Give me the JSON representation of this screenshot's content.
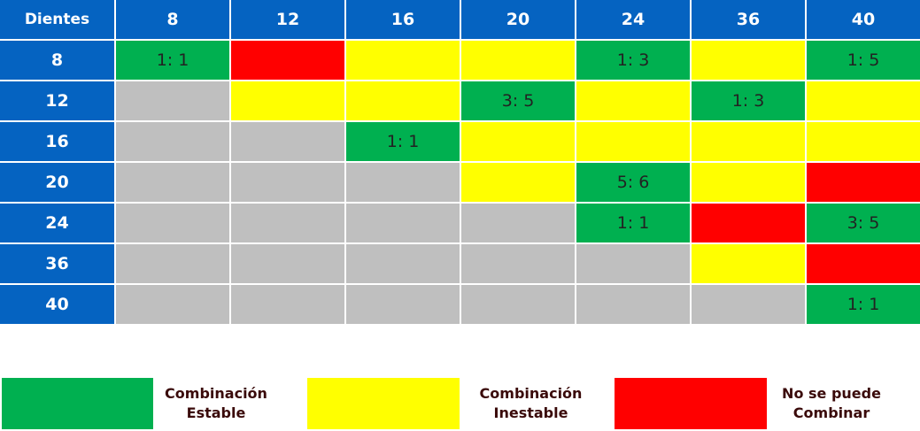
{
  "chart_data": {
    "type": "table",
    "corner_label": "Dientes",
    "columns": [
      "8",
      "12",
      "16",
      "20",
      "24",
      "36",
      "40"
    ],
    "rows": [
      "8",
      "12",
      "16",
      "20",
      "24",
      "36",
      "40"
    ],
    "cells": [
      [
        {
          "s": "stable",
          "t": "1: 1"
        },
        {
          "s": "impossible",
          "t": ""
        },
        {
          "s": "unstable",
          "t": ""
        },
        {
          "s": "unstable",
          "t": ""
        },
        {
          "s": "stable",
          "t": "1: 3"
        },
        {
          "s": "unstable",
          "t": ""
        },
        {
          "s": "stable",
          "t": "1: 5"
        }
      ],
      [
        {
          "s": "na",
          "t": ""
        },
        {
          "s": "unstable",
          "t": ""
        },
        {
          "s": "unstable",
          "t": ""
        },
        {
          "s": "stable",
          "t": "3: 5"
        },
        {
          "s": "unstable",
          "t": ""
        },
        {
          "s": "stable",
          "t": "1: 3"
        },
        {
          "s": "unstable",
          "t": ""
        }
      ],
      [
        {
          "s": "na",
          "t": ""
        },
        {
          "s": "na",
          "t": ""
        },
        {
          "s": "stable",
          "t": "1: 1"
        },
        {
          "s": "unstable",
          "t": ""
        },
        {
          "s": "unstable",
          "t": ""
        },
        {
          "s": "unstable",
          "t": ""
        },
        {
          "s": "unstable",
          "t": ""
        }
      ],
      [
        {
          "s": "na",
          "t": ""
        },
        {
          "s": "na",
          "t": ""
        },
        {
          "s": "na",
          "t": ""
        },
        {
          "s": "unstable",
          "t": ""
        },
        {
          "s": "stable",
          "t": "5: 6"
        },
        {
          "s": "unstable",
          "t": ""
        },
        {
          "s": "impossible",
          "t": ""
        }
      ],
      [
        {
          "s": "na",
          "t": ""
        },
        {
          "s": "na",
          "t": ""
        },
        {
          "s": "na",
          "t": ""
        },
        {
          "s": "na",
          "t": ""
        },
        {
          "s": "stable",
          "t": "1: 1"
        },
        {
          "s": "impossible",
          "t": ""
        },
        {
          "s": "stable",
          "t": "3: 5"
        }
      ],
      [
        {
          "s": "na",
          "t": ""
        },
        {
          "s": "na",
          "t": ""
        },
        {
          "s": "na",
          "t": ""
        },
        {
          "s": "na",
          "t": ""
        },
        {
          "s": "na",
          "t": ""
        },
        {
          "s": "unstable",
          "t": ""
        },
        {
          "s": "impossible",
          "t": ""
        }
      ],
      [
        {
          "s": "na",
          "t": ""
        },
        {
          "s": "na",
          "t": ""
        },
        {
          "s": "na",
          "t": ""
        },
        {
          "s": "na",
          "t": ""
        },
        {
          "s": "na",
          "t": ""
        },
        {
          "s": "na",
          "t": ""
        },
        {
          "s": "stable",
          "t": "1: 1"
        }
      ]
    ]
  },
  "colors": {
    "header": "#0563c1",
    "stable": "#00b050",
    "unstable": "#ffff00",
    "impossible": "#ff0000",
    "na": "#bfbfbf"
  },
  "legend": {
    "stable": [
      "Combinación",
      "Estable"
    ],
    "unstable": [
      "Combinación",
      "Inestable"
    ],
    "impossible": [
      "No se puede",
      "Combinar"
    ]
  }
}
